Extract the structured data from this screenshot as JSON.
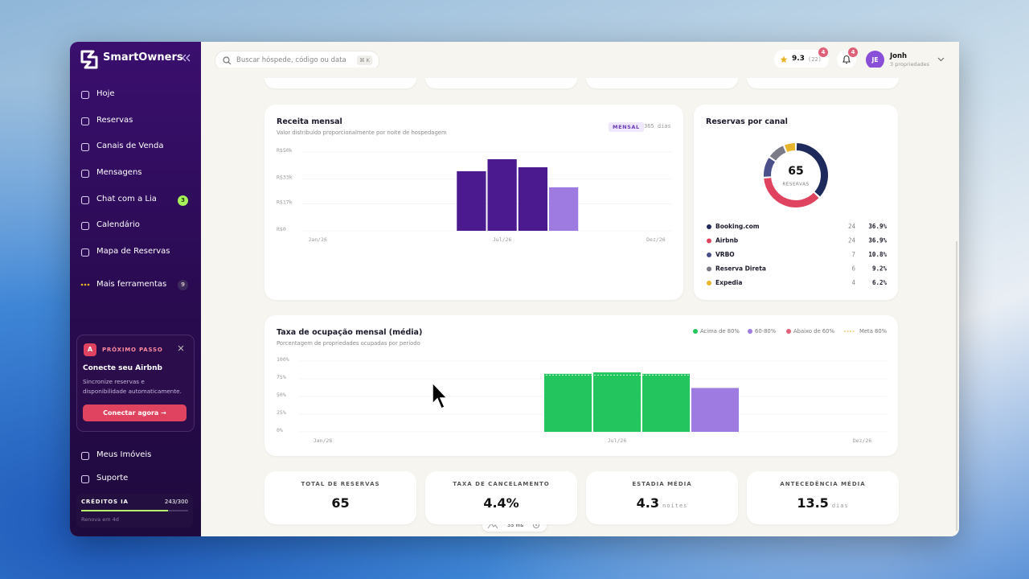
{
  "sidebar": {
    "brand": "SmartOwners",
    "nav": [
      {
        "label": "Hoje"
      },
      {
        "label": "Reservas"
      },
      {
        "label": "Canais de Venda"
      },
      {
        "label": "Mensagens"
      },
      {
        "label": "Chat com a Lia",
        "badge": "3"
      },
      {
        "label": "Calendário"
      },
      {
        "label": "Mapa de Reservas"
      }
    ],
    "more": {
      "label": "Mais ferramentas",
      "badge": "9"
    },
    "promo": {
      "icon": "A",
      "tag": "PRÓXIMO PASSO",
      "title": "Conecte seu Airbnb",
      "text": "Sincronize reservas e disponibilidade automaticamente.",
      "button": "Conectar agora →"
    },
    "bottom_nav": [
      "Meus Imóveis",
      "Suporte"
    ],
    "credits": {
      "label": "CRÉDITOS IA",
      "value": 243,
      "max": 300,
      "value_label": "243/300",
      "note": "Renova em 4d"
    }
  },
  "topbar": {
    "search": "Buscar hóspede, código ou data",
    "shortcut": "⌘ K",
    "rating": "9.3",
    "rating_count": "(22)",
    "rating_badge": "4",
    "notif_badge": "4",
    "user": {
      "initials": "JE",
      "name": "Jonh",
      "sub": "3 propriedades"
    }
  },
  "revenue": {
    "title": "Receita mensal",
    "subtitle": "Valor distribuído proporcionalmente por noite de hospedagem",
    "badge": "MENSAL",
    "range": "365 dias",
    "categories": [
      "Jan/26",
      null,
      null,
      null,
      null,
      null,
      "Jul/26",
      null,
      null,
      null,
      null,
      "Dez/26"
    ],
    "values": [
      0,
      0,
      0,
      0,
      0,
      37800,
      45400,
      40300,
      27600,
      0,
      0,
      0
    ],
    "colors": [
      "#4c1a8f",
      "#4c1a8f",
      "#4c1a8f",
      "#4c1a8f",
      "#4c1a8f",
      "#4c1a8f",
      "#4c1a8f",
      "#4c1a8f",
      "#9d7be0",
      "#9d7be0",
      "#9d7be0",
      "#9d7be0"
    ],
    "ylim": [
      0,
      50000
    ],
    "yticks": [
      {
        "value": 0,
        "label": "R$0"
      },
      {
        "value": 17000,
        "label": "R$17k"
      },
      {
        "value": 33000,
        "label": "R$33k"
      },
      {
        "value": 50000,
        "label": "R$50k"
      }
    ]
  },
  "channels": {
    "title": "Reservas por canal",
    "total": "65",
    "total_label": "RESERVAS",
    "items": [
      {
        "name": "Booking.com",
        "count": 24,
        "share": "36.9%",
        "color": "#1f2a5c"
      },
      {
        "name": "Airbnb",
        "count": 24,
        "share": "36.9%",
        "color": "#e0435f"
      },
      {
        "name": "VRBO",
        "count": 7,
        "share": "10.8%",
        "color": "#4b4f8a"
      },
      {
        "name": "Reserva Direta",
        "count": 6,
        "share": "9.2%",
        "color": "#7b7b88"
      },
      {
        "name": "Expedia",
        "count": 4,
        "share": "6.2%",
        "color": "#e8b52a"
      }
    ]
  },
  "occupancy": {
    "title": "Taxa de ocupação mensal (média)",
    "subtitle": "Porcentagem de propriedades ocupadas por período",
    "legend": [
      {
        "label": "Acima de 80%",
        "color": "#22c55e"
      },
      {
        "label": "60-80%",
        "color": "#9d7be0"
      },
      {
        "label": "Abaixo de 60%",
        "color": "#e0607a"
      },
      {
        "label": "Meta 80%",
        "color": "#e8b52a"
      }
    ],
    "target": 80,
    "categories": [
      "Jan/26",
      null,
      null,
      null,
      null,
      null,
      "Jul/26",
      null,
      null,
      null,
      null,
      "Dez/26"
    ],
    "values": [
      0,
      0,
      0,
      0,
      0,
      82,
      84,
      82,
      62,
      0,
      0,
      0
    ],
    "colors": [
      "#22c55e",
      "#22c55e",
      "#22c55e",
      "#22c55e",
      "#22c55e",
      "#22c55e",
      "#22c55e",
      "#22c55e",
      "#9d7be0",
      "#9d7be0",
      "#9d7be0",
      "#9d7be0"
    ],
    "ylim": [
      0,
      100
    ],
    "yticks": [
      {
        "value": 0,
        "label": "0%"
      },
      {
        "value": 25,
        "label": "25%"
      },
      {
        "value": 50,
        "label": "50%"
      },
      {
        "value": 75,
        "label": "75%"
      },
      {
        "value": 100,
        "label": "100%"
      }
    ]
  },
  "stats": [
    {
      "label": "TOTAL DE RESERVAS",
      "value": "65"
    },
    {
      "label": "TAXA DE CANCELAMENTO",
      "value": "4.4%"
    },
    {
      "label": "ESTADIA MÉDIA",
      "value": "4.3",
      "unit": "noites"
    },
    {
      "label": "ANTECEDÊNCIA MÉDIA",
      "value": "13.5",
      "unit": "dias"
    }
  ],
  "perf": "35 ms"
}
